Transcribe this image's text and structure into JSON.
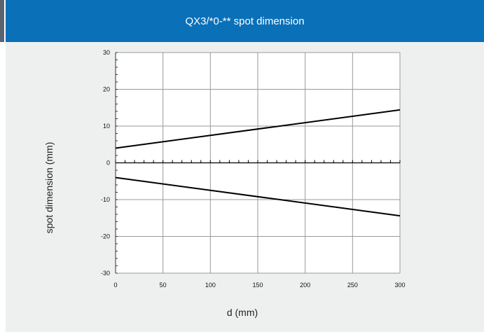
{
  "header": {
    "title": "QX3/*0-** spot dimension",
    "color": "#0a70b8"
  },
  "chart_data": {
    "type": "line",
    "title": "QX3/*0-** spot dimension",
    "xlabel": "d (mm)",
    "ylabel": "spot dimension (mm)",
    "xlim": [
      0,
      300
    ],
    "ylim": [
      -30,
      30
    ],
    "x_ticks": [
      0,
      50,
      100,
      150,
      200,
      250,
      300
    ],
    "y_ticks": [
      30,
      20,
      10,
      0,
      -10,
      -20,
      -30
    ],
    "y_tick_labels": [
      "30",
      "20",
      "10",
      "0",
      "-10",
      "-20",
      "-30"
    ],
    "grid": true,
    "series": [
      {
        "x": [
          0,
          300
        ],
        "values": [
          4,
          14.4
        ],
        "color": "#000000"
      },
      {
        "x": [
          0,
          300
        ],
        "values": [
          -4,
          -14.4
        ],
        "color": "#000000"
      }
    ]
  }
}
